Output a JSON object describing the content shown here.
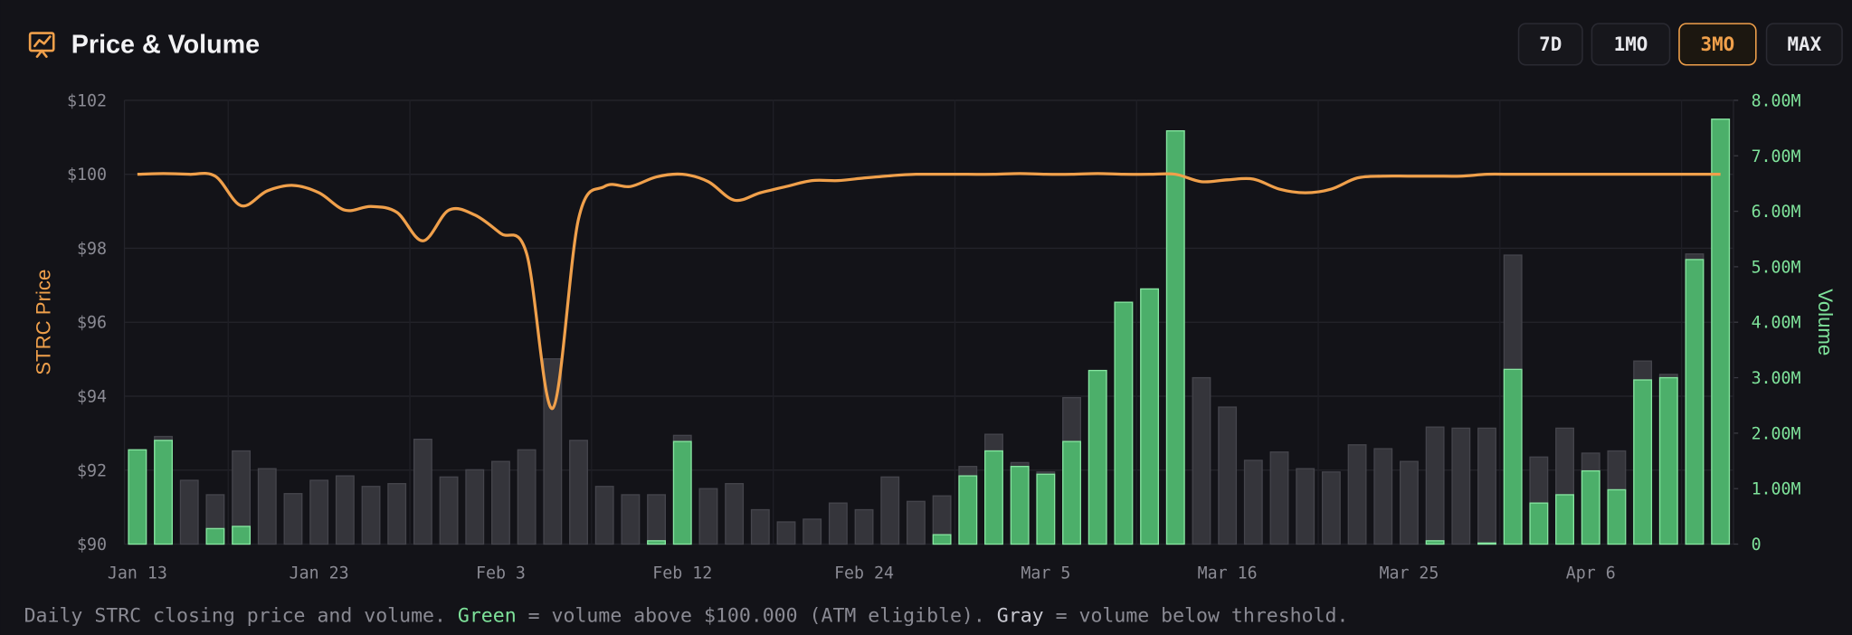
{
  "chart_data": {
    "type": "combo",
    "title": "Price & Volume",
    "ranges": [
      "7D",
      "1MO",
      "3MO",
      "MAX"
    ],
    "active_range": "3MO",
    "ylabel": "STRC Price",
    "y2label": "Volume",
    "ylim": [
      90,
      102
    ],
    "yticks": [
      {
        "value": 90,
        "label": "$90"
      },
      {
        "value": 92,
        "label": "$92"
      },
      {
        "value": 94,
        "label": "$94"
      },
      {
        "value": 96,
        "label": "$96"
      },
      {
        "value": 98,
        "label": "$98"
      },
      {
        "value": 100,
        "label": "$100"
      },
      {
        "value": 102,
        "label": "$102"
      }
    ],
    "y2lim": [
      0,
      8000000
    ],
    "y2ticks": [
      0,
      {
        "value": 1000000,
        "label": "1.00M"
      },
      {
        "value": 2000000,
        "label": "2.00M"
      },
      {
        "value": 3000000,
        "label": "3.00M"
      },
      {
        "value": 4000000,
        "label": "4.00M"
      },
      {
        "value": 5000000,
        "label": "5.00M"
      },
      {
        "value": 6000000,
        "label": "6.00M"
      },
      {
        "value": 7000000,
        "label": "7.00M"
      },
      {
        "value": 8000000,
        "label": "8.00M"
      }
    ],
    "grid": true,
    "categories": [
      "Jan 13",
      null,
      null,
      null,
      null,
      null,
      null,
      "Jan 23",
      null,
      null,
      null,
      null,
      null,
      null,
      "Feb 3",
      null,
      null,
      null,
      null,
      null,
      null,
      "Feb 12",
      null,
      null,
      null,
      null,
      null,
      null,
      "Feb 24",
      null,
      null,
      null,
      null,
      null,
      null,
      "Mar 5",
      null,
      null,
      null,
      null,
      null,
      null,
      "Mar 16",
      null,
      null,
      null,
      null,
      null,
      null,
      "Mar 25",
      null,
      null,
      null,
      null,
      null,
      null,
      "Apr 6",
      null,
      null,
      null,
      null,
      null
    ],
    "series": [
      {
        "type": "bar",
        "axis": "y2",
        "color": "#35353b",
        "values": [
          1700000,
          1940000,
          1150000,
          890000,
          1680000,
          1360000,
          910000,
          1150000,
          1230000,
          1040000,
          1090000,
          1890000,
          1210000,
          1340000,
          1490000,
          1700000,
          3340000,
          1870000,
          1040000,
          890000,
          890000,
          1960000,
          1000000,
          1090000,
          620000,
          400000,
          450000,
          740000,
          620000,
          1210000,
          770000,
          870000,
          1400000,
          1980000,
          1470000,
          1300000,
          2640000,
          3130000,
          4360000,
          4600000,
          7450000,
          3000000,
          2470000,
          1510000,
          1660000,
          1360000,
          1300000,
          1790000,
          1720000,
          1490000,
          2110000,
          2090000,
          2090000,
          5210000,
          1570000,
          2090000,
          1640000,
          1680000,
          3300000,
          3060000,
          5230000,
          7660000
        ]
      },
      {
        "type": "bar",
        "axis": "y2",
        "color": "#4caf6a",
        "values": [
          1700000,
          1870000,
          0,
          280000,
          320000,
          0,
          0,
          0,
          0,
          0,
          0,
          0,
          0,
          0,
          0,
          0,
          0,
          0,
          0,
          0,
          60000,
          1850000,
          0,
          0,
          0,
          0,
          0,
          0,
          0,
          0,
          0,
          170000,
          1230000,
          1680000,
          1400000,
          1260000,
          1850000,
          3130000,
          4360000,
          4600000,
          7450000,
          0,
          0,
          0,
          0,
          0,
          0,
          0,
          0,
          0,
          60000,
          0,
          20000,
          3150000,
          740000,
          890000,
          1320000,
          980000,
          2960000,
          3000000,
          5130000,
          7660000
        ]
      },
      {
        "type": "line",
        "axis": "y",
        "color": "#f0a04b",
        "values": [
          100.0,
          100.02,
          100.0,
          99.95,
          99.15,
          99.55,
          99.7,
          99.5,
          99.03,
          99.13,
          98.97,
          98.2,
          99.03,
          98.9,
          98.4,
          97.85,
          93.67,
          98.8,
          99.67,
          99.67,
          99.93,
          100.0,
          99.8,
          99.3,
          99.5,
          99.67,
          99.83,
          99.83,
          99.9,
          99.96,
          100.0,
          100.0,
          100.0,
          100.0,
          100.02,
          100.0,
          100.0,
          100.02,
          100.0,
          100.0,
          100.0,
          99.8,
          99.85,
          99.87,
          99.6,
          99.5,
          99.6,
          99.9,
          99.95,
          99.95,
          99.95,
          99.95,
          100.0,
          100.0,
          100.0,
          100.0,
          100.0,
          100.0,
          100.0,
          100.0,
          100.0,
          100.0
        ]
      }
    ],
    "footnote": [
      "Daily STRC closing price and volume.",
      "Green",
      "= volume above $100.000 (ATM eligible).",
      "Gray",
      "= volume below threshold."
    ]
  }
}
